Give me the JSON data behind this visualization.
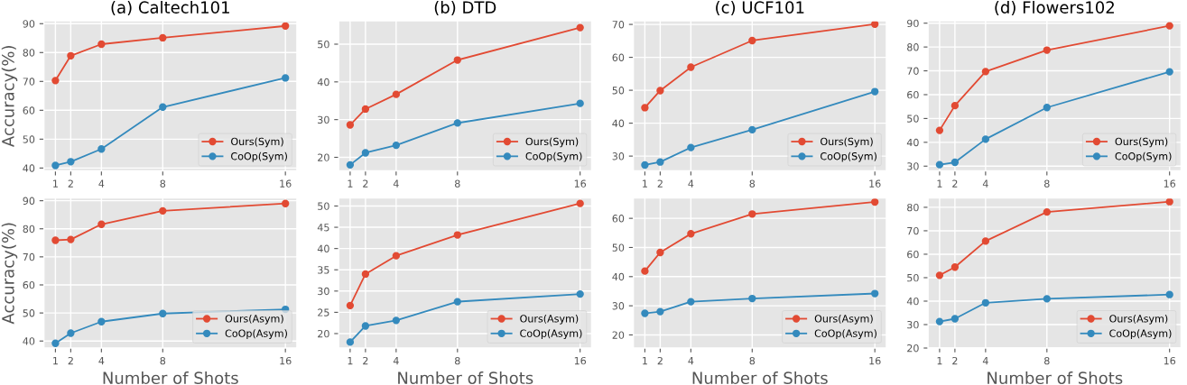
{
  "chart_data": [
    {
      "type": "line",
      "title": "(a) Caltech101",
      "ylabel": "Accuracy(%)",
      "x": [
        1,
        2,
        4,
        8,
        16
      ],
      "xlim": [
        0.25,
        16.75
      ],
      "xticks": [
        1,
        2,
        4,
        8,
        16
      ],
      "ylim": [
        39,
        91
      ],
      "yticks": [
        40,
        50,
        60,
        70,
        80,
        90
      ],
      "grid": true,
      "legend": "lower right",
      "marker": "circle",
      "line_style": "solid",
      "series": [
        {
          "name": "Ours(Sym)",
          "color": "#e24a33",
          "values": [
            70.3,
            78.9,
            82.9,
            85.1,
            89.2
          ]
        },
        {
          "name": "CoOp(Sym)",
          "color": "#348abd",
          "values": [
            40.9,
            42.2,
            46.6,
            61.1,
            71.2
          ]
        }
      ]
    },
    {
      "type": "line",
      "title": "(b) DTD",
      "x": [
        1,
        2,
        4,
        8,
        16
      ],
      "xlim": [
        0.25,
        16.75
      ],
      "xticks": [
        1,
        2,
        4,
        8,
        16
      ],
      "ylim": [
        16.4,
        56.2
      ],
      "yticks": [
        20,
        30,
        40,
        50
      ],
      "grid": true,
      "legend": "lower right",
      "marker": "circle",
      "line_style": "solid",
      "series": [
        {
          "name": "Ours(Sym)",
          "color": "#e24a33",
          "values": [
            28.6,
            32.8,
            36.7,
            45.8,
            54.4
          ]
        },
        {
          "name": "CoOp(Sym)",
          "color": "#348abd",
          "values": [
            18.0,
            21.2,
            23.2,
            29.1,
            34.3
          ]
        }
      ]
    },
    {
      "type": "line",
      "title": "(c) UCF101",
      "x": [
        1,
        2,
        4,
        8,
        16
      ],
      "xlim": [
        0.25,
        16.75
      ],
      "xticks": [
        1,
        2,
        4,
        8,
        16
      ],
      "ylim": [
        25.5,
        71.1
      ],
      "yticks": [
        30,
        40,
        50,
        60,
        70
      ],
      "grid": true,
      "legend": "lower right",
      "marker": "circle",
      "line_style": "solid",
      "series": [
        {
          "name": "Ours(Sym)",
          "color": "#e24a33",
          "values": [
            44.7,
            49.9,
            57.0,
            65.1,
            70.1
          ]
        },
        {
          "name": "CoOp(Sym)",
          "color": "#348abd",
          "values": [
            27.3,
            28.2,
            32.6,
            38.0,
            49.6
          ]
        }
      ]
    },
    {
      "type": "line",
      "title": "(d) Flowers102",
      "x": [
        1,
        2,
        4,
        8,
        16
      ],
      "xlim": [
        0.25,
        16.75
      ],
      "xticks": [
        1,
        2,
        4,
        8,
        16
      ],
      "ylim": [
        28.0,
        91.0
      ],
      "yticks": [
        30,
        40,
        50,
        60,
        70,
        80,
        90
      ],
      "grid": true,
      "legend": "lower right",
      "marker": "circle",
      "line_style": "solid",
      "series": [
        {
          "name": "Ours(Sym)",
          "color": "#e24a33",
          "values": [
            45.0,
            55.4,
            69.7,
            78.7,
            88.9
          ]
        },
        {
          "name": "CoOp(Sym)",
          "color": "#348abd",
          "values": [
            30.6,
            31.6,
            41.3,
            54.6,
            69.6
          ]
        }
      ]
    },
    {
      "type": "line",
      "xlabel": "Number of Shots",
      "ylabel": "Accuracy(%)",
      "x": [
        1,
        2,
        4,
        8,
        16
      ],
      "xlim": [
        0.25,
        16.75
      ],
      "xticks": [
        1,
        2,
        4,
        8,
        16
      ],
      "ylim": [
        37.5,
        91.0
      ],
      "yticks": [
        40,
        50,
        60,
        70,
        80,
        90
      ],
      "grid": true,
      "legend": "lower right",
      "marker": "circle",
      "line_style": "solid",
      "series": [
        {
          "name": "Ours(Asym)",
          "color": "#e24a33",
          "values": [
            75.9,
            76.2,
            81.6,
            86.4,
            89.0
          ]
        },
        {
          "name": "CoOp(Asym)",
          "color": "#348abd",
          "values": [
            39.2,
            42.8,
            46.9,
            49.8,
            51.3
          ]
        }
      ]
    },
    {
      "type": "line",
      "xlabel": "Number of Shots",
      "x": [
        1,
        2,
        4,
        8,
        16
      ],
      "xlim": [
        0.25,
        16.75
      ],
      "xticks": [
        1,
        2,
        4,
        8,
        16
      ],
      "ylim": [
        16.6,
        51.9
      ],
      "yticks": [
        20,
        25,
        30,
        35,
        40,
        45,
        50
      ],
      "grid": true,
      "legend": "lower right",
      "marker": "circle",
      "line_style": "solid",
      "series": [
        {
          "name": "Ours(Asym)",
          "color": "#e24a33",
          "values": [
            26.6,
            34.0,
            38.3,
            43.2,
            50.6
          ]
        },
        {
          "name": "CoOp(Asym)",
          "color": "#348abd",
          "values": [
            18.0,
            21.8,
            23.1,
            27.5,
            29.3
          ]
        }
      ]
    },
    {
      "type": "line",
      "xlabel": "Number of Shots",
      "x": [
        1,
        2,
        4,
        8,
        16
      ],
      "xlim": [
        0.25,
        16.75
      ],
      "xticks": [
        1,
        2,
        4,
        8,
        16
      ],
      "ylim": [
        15.5,
        67.0
      ],
      "yticks": [
        20,
        30,
        40,
        50,
        60
      ],
      "grid": true,
      "legend": "lower right",
      "marker": "circle",
      "line_style": "solid",
      "series": [
        {
          "name": "Ours(Asym)",
          "color": "#e24a33",
          "values": [
            41.9,
            48.3,
            54.7,
            61.5,
            65.6
          ]
        },
        {
          "name": "CoOp(Asym)",
          "color": "#348abd",
          "values": [
            27.4,
            28.0,
            31.4,
            32.5,
            34.2
          ]
        }
      ]
    },
    {
      "type": "line",
      "xlabel": "Number of Shots",
      "x": [
        1,
        2,
        4,
        8,
        16
      ],
      "xlim": [
        0.25,
        16.75
      ],
      "xticks": [
        1,
        2,
        4,
        8,
        16
      ],
      "ylim": [
        20.0,
        84.0
      ],
      "yticks": [
        20,
        30,
        40,
        50,
        60,
        70,
        80
      ],
      "grid": true,
      "legend": "lower right",
      "marker": "circle",
      "line_style": "solid",
      "series": [
        {
          "name": "Ours(Asym)",
          "color": "#e24a33",
          "values": [
            51.0,
            54.5,
            65.6,
            78.0,
            82.4
          ]
        },
        {
          "name": "CoOp(Asym)",
          "color": "#348abd",
          "values": [
            31.3,
            32.5,
            39.3,
            41.0,
            42.8
          ]
        }
      ]
    }
  ]
}
